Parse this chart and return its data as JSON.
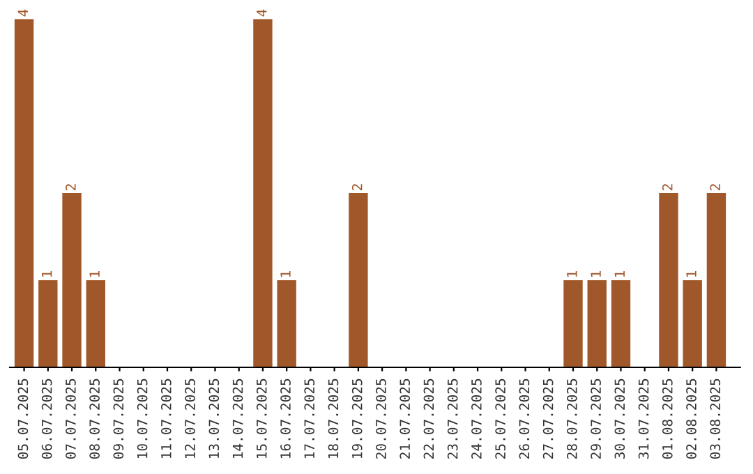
{
  "chart_data": {
    "type": "bar",
    "categories": [
      "05.07.2025",
      "06.07.2025",
      "07.07.2025",
      "08.07.2025",
      "09.07.2025",
      "10.07.2025",
      "11.07.2025",
      "12.07.2025",
      "13.07.2025",
      "14.07.2025",
      "15.07.2025",
      "16.07.2025",
      "17.07.2025",
      "18.07.2025",
      "19.07.2025",
      "20.07.2025",
      "21.07.2025",
      "22.07.2025",
      "23.07.2025",
      "24.07.2025",
      "25.07.2025",
      "26.07.2025",
      "27.07.2025",
      "28.07.2025",
      "29.07.2025",
      "30.07.2025",
      "31.07.2025",
      "01.08.2025",
      "02.08.2025",
      "03.08.2025"
    ],
    "values": [
      4,
      1,
      2,
      1,
      0,
      0,
      0,
      0,
      0,
      0,
      4,
      1,
      0,
      0,
      2,
      0,
      0,
      0,
      0,
      0,
      0,
      0,
      0,
      1,
      1,
      1,
      0,
      2,
      1,
      2
    ],
    "value_labels": [
      "4",
      "1",
      "2",
      "1",
      null,
      null,
      null,
      null,
      null,
      null,
      "4",
      "1",
      null,
      null,
      "2",
      null,
      null,
      null,
      null,
      null,
      null,
      null,
      null,
      "1",
      "1",
      "1",
      null,
      "2",
      "1",
      "2"
    ],
    "color": "#a0582a",
    "tick_labels": "x",
    "grid": false,
    "legend": false
  }
}
